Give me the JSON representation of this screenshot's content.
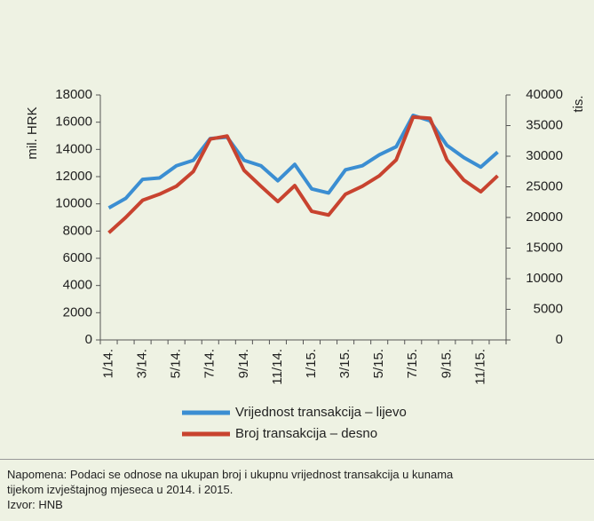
{
  "chart_data": {
    "type": "line",
    "categories": [
      "1/14.",
      null,
      "3/14.",
      null,
      "5/14.",
      null,
      "7/14.",
      null,
      "9/14.",
      null,
      "11/14.",
      null,
      "1/15.",
      null,
      "3/15.",
      null,
      "5/15.",
      null,
      "7/15.",
      null,
      "9/15.",
      null,
      "11/15.",
      null
    ],
    "ylabel": "mil. HRK",
    "y2label": "tis.",
    "ylim": [
      0,
      18000
    ],
    "yticks": [
      0,
      2000,
      4000,
      6000,
      8000,
      10000,
      12000,
      14000,
      16000,
      18000
    ],
    "y2lim": [
      0,
      40000
    ],
    "y2ticks": [
      0,
      5000,
      10000,
      15000,
      20000,
      25000,
      30000,
      35000,
      40000
    ],
    "series": [
      {
        "name": "Vrijednost transakcija – lijevo",
        "color": "#3b8ed2",
        "axis": "y",
        "values": [
          9700,
          10400,
          11800,
          11900,
          12800,
          13200,
          14800,
          14900,
          13200,
          12800,
          11700,
          12900,
          11100,
          10800,
          12500,
          12800,
          13600,
          14200,
          16500,
          16100,
          14300,
          13400,
          12700,
          13800
        ]
      },
      {
        "name": "Broj transakcija – desno",
        "color": "#c8432f",
        "axis": "y2",
        "values": [
          17500,
          20000,
          22800,
          23800,
          25100,
          27500,
          32800,
          33300,
          27700,
          25100,
          22600,
          25200,
          21000,
          20400,
          23800,
          25100,
          26800,
          29400,
          36400,
          36200,
          29400,
          26100,
          24200,
          26800
        ]
      }
    ],
    "grid": false
  },
  "note": [
    "Napomena: Podaci se odnose na ukupan broj i ukupnu vrijednost transakcija u kunama",
    "tijekom izvještajnog mjeseca u 2014. i 2015."
  ],
  "source": "Izvor: HNB"
}
